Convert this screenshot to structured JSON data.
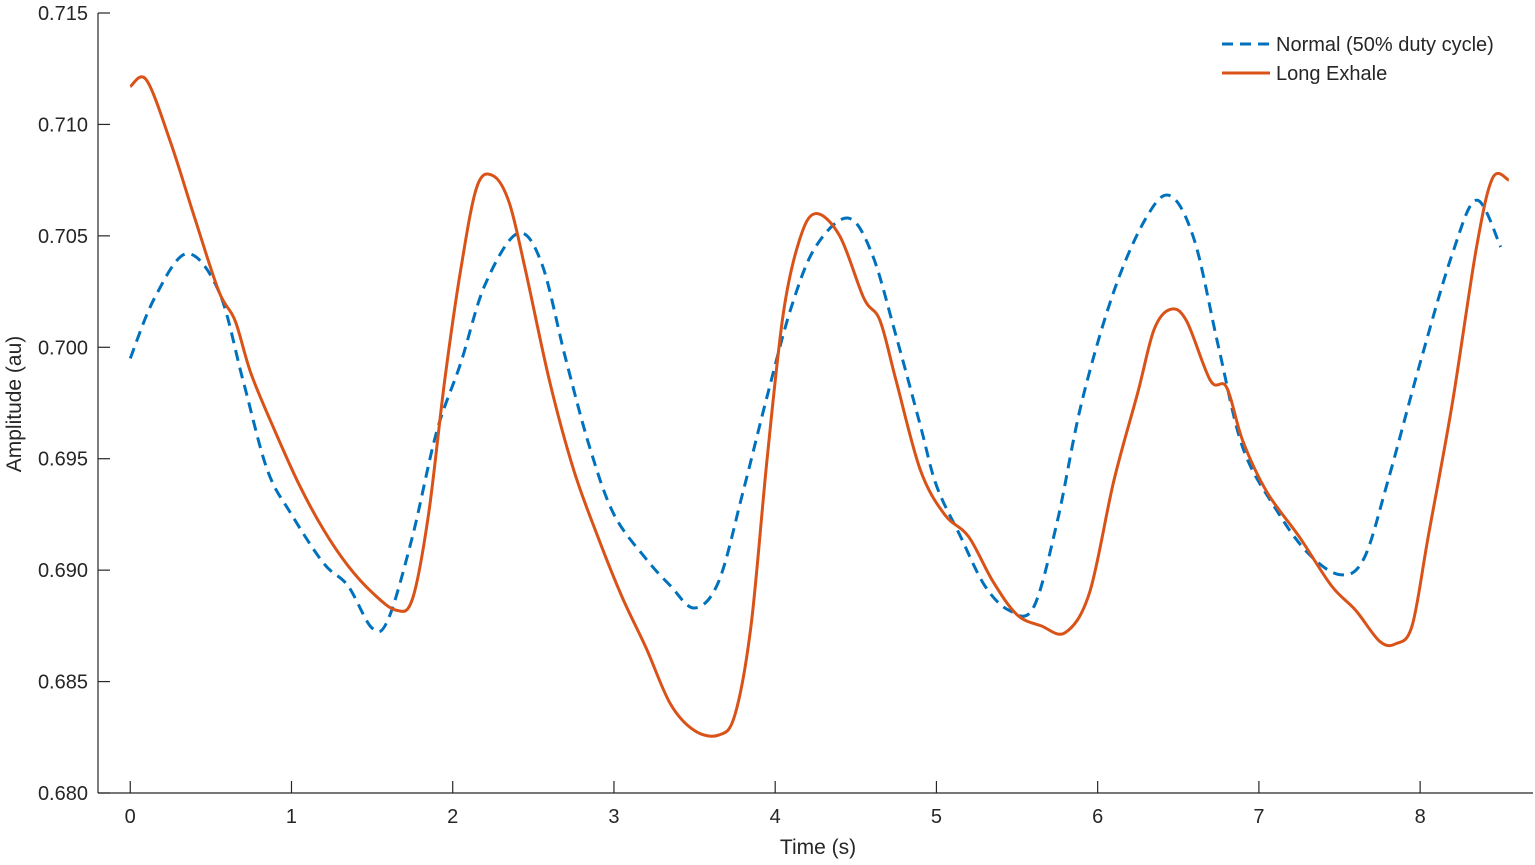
{
  "chart_data": {
    "type": "line",
    "title": "",
    "xlabel": "Time (s)",
    "ylabel": "Amplitude (au)",
    "xlim": [
      -0.2,
      8.7
    ],
    "ylim": [
      0.68,
      0.715
    ],
    "x_ticks": [
      0,
      1,
      2,
      3,
      4,
      5,
      6,
      7,
      8
    ],
    "y_ticks": [
      0.68,
      0.685,
      0.69,
      0.695,
      0.7,
      0.705,
      0.71,
      0.715
    ],
    "x_tick_labels": [
      "0",
      "1",
      "2",
      "3",
      "4",
      "5",
      "6",
      "7",
      "8"
    ],
    "y_tick_labels": [
      "0.680",
      "0.685",
      "0.690",
      "0.695",
      "0.700",
      "0.705",
      "0.710",
      "0.715"
    ],
    "grid": false,
    "legend_position": "top-right",
    "series": [
      {
        "name": "Normal (50% duty cycle)",
        "color": "#0072BD",
        "style": "dashed",
        "x": [
          0,
          0.15,
          0.35,
          0.55,
          0.7,
          0.85,
          1.0,
          1.2,
          1.35,
          1.5,
          1.6,
          1.75,
          1.9,
          2.05,
          2.2,
          2.4,
          2.55,
          2.7,
          2.85,
          3.0,
          3.2,
          3.35,
          3.5,
          3.65,
          3.8,
          3.95,
          4.1,
          4.25,
          4.45,
          4.6,
          4.75,
          4.9,
          5.0,
          5.15,
          5.3,
          5.45,
          5.6,
          5.75,
          5.9,
          6.1,
          6.3,
          6.45,
          6.6,
          6.75,
          6.9,
          7.1,
          7.3,
          7.5,
          7.65,
          7.8,
          8.0,
          8.2,
          8.35,
          8.5
        ],
        "y": [
          0.6995,
          0.7022,
          0.7042,
          0.7025,
          0.6985,
          0.6945,
          0.6925,
          0.6903,
          0.6893,
          0.6874,
          0.6878,
          0.6915,
          0.6962,
          0.6993,
          0.7028,
          0.7051,
          0.7038,
          0.6995,
          0.6955,
          0.6925,
          0.6905,
          0.6893,
          0.6883,
          0.6895,
          0.6935,
          0.6978,
          0.7018,
          0.7045,
          0.7058,
          0.7042,
          0.7005,
          0.6965,
          0.6938,
          0.6915,
          0.6893,
          0.6882,
          0.6883,
          0.6922,
          0.6975,
          0.7025,
          0.7058,
          0.7068,
          0.7048,
          0.7,
          0.6955,
          0.6928,
          0.6908,
          0.6898,
          0.6905,
          0.694,
          0.6993,
          0.7042,
          0.7066,
          0.7045
        ]
      },
      {
        "name": "Long Exhale",
        "color": "#D95319",
        "style": "solid",
        "x": [
          0,
          0.1,
          0.25,
          0.4,
          0.55,
          0.65,
          0.75,
          0.9,
          1.05,
          1.2,
          1.35,
          1.5,
          1.65,
          1.75,
          1.85,
          1.95,
          2.05,
          2.15,
          2.25,
          2.35,
          2.45,
          2.6,
          2.75,
          2.9,
          3.05,
          3.2,
          3.35,
          3.5,
          3.65,
          3.75,
          3.85,
          3.95,
          4.05,
          4.15,
          4.25,
          4.4,
          4.55,
          4.65,
          4.75,
          4.9,
          5.05,
          5.2,
          5.35,
          5.5,
          5.65,
          5.8,
          5.95,
          6.1,
          6.25,
          6.35,
          6.45,
          6.55,
          6.7,
          6.8,
          6.9,
          7.05,
          7.25,
          7.45,
          7.6,
          7.75,
          7.85,
          7.95,
          8.05,
          8.2,
          8.35,
          8.45,
          8.55
        ],
        "y": [
          0.7117,
          0.712,
          0.7092,
          0.7058,
          0.7025,
          0.7012,
          0.6988,
          0.6962,
          0.6938,
          0.6918,
          0.6902,
          0.689,
          0.6882,
          0.6887,
          0.6925,
          0.6985,
          0.7035,
          0.7072,
          0.7077,
          0.7065,
          0.7035,
          0.6985,
          0.6945,
          0.6915,
          0.6888,
          0.6865,
          0.684,
          0.6828,
          0.6826,
          0.6835,
          0.6875,
          0.695,
          0.7015,
          0.7048,
          0.706,
          0.705,
          0.7022,
          0.7012,
          0.6985,
          0.6945,
          0.6925,
          0.6915,
          0.6895,
          0.688,
          0.6875,
          0.6872,
          0.689,
          0.694,
          0.698,
          0.7008,
          0.7017,
          0.7012,
          0.6985,
          0.6982,
          0.6958,
          0.6935,
          0.6915,
          0.6893,
          0.6882,
          0.6868,
          0.6867,
          0.6875,
          0.6915,
          0.6975,
          0.7045,
          0.7076,
          0.7075
        ]
      }
    ]
  }
}
